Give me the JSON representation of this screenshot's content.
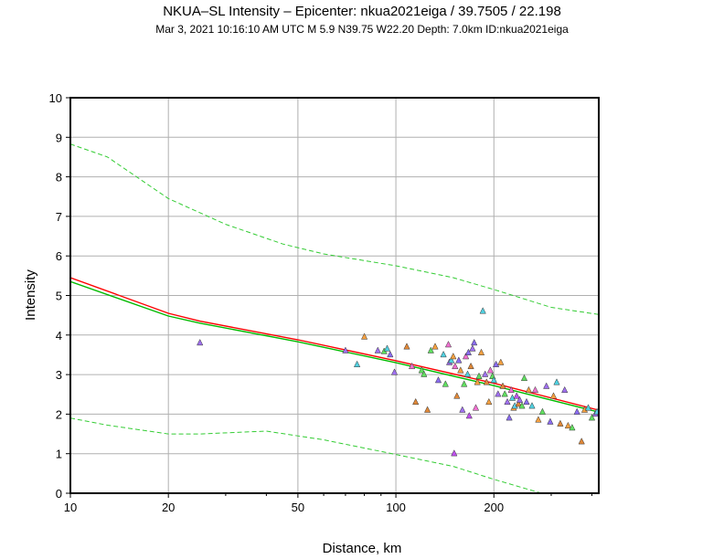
{
  "header": {
    "title": "NKUA–SL Intensity –  Epicenter: nkua2021eiga / 39.7505 / 22.198",
    "subtitle": "Mar  3, 2021 10:16:10 AM UTC   M 5.9   N39.75 W22.20   Depth: 7.0km   ID:nkua2021eiga"
  },
  "chart_data": {
    "type": "scatter",
    "title": "NKUA–SL Intensity –  Epicenter: nkua2021eiga / 39.7505 / 22.198",
    "xlabel": "Distance, km",
    "ylabel": "Intensity",
    "xscale": "log",
    "xlim": [
      10,
      420
    ],
    "ylim": [
      0,
      10
    ],
    "xticks": [
      10,
      20,
      50,
      100,
      200
    ],
    "xtick_labels": [
      "10",
      "20",
      "50",
      "100",
      "200"
    ],
    "yticks": [
      0,
      1,
      2,
      3,
      4,
      5,
      6,
      7,
      8,
      9,
      10
    ],
    "ytick_labels": [
      "0",
      "1",
      "2",
      "3",
      "4",
      "5",
      "6",
      "7",
      "8",
      "9",
      "10"
    ],
    "grid": true,
    "colors": {
      "red_curve": "#ff0000",
      "green_curve": "#00bb00",
      "dashed": "#33cc33",
      "grid": "#b0b0b0",
      "points": [
        "#f4a040",
        "#a070f0",
        "#60e060",
        "#50d0e0",
        "#f070d0",
        "#e08838",
        "#8a6cf0",
        "#5fd0e8",
        "#c050f0"
      ]
    },
    "series": [
      {
        "name": "red_curve",
        "style": "solid",
        "x": [
          10,
          20,
          25,
          50,
          100,
          200,
          420
        ],
        "y": [
          5.45,
          4.55,
          4.35,
          3.88,
          3.35,
          2.78,
          2.1
        ]
      },
      {
        "name": "green_curve",
        "style": "solid",
        "x": [
          10,
          20,
          25,
          50,
          100,
          200,
          420
        ],
        "y": [
          5.35,
          4.48,
          4.3,
          3.83,
          3.3,
          2.72,
          2.05
        ]
      },
      {
        "name": "upper_dashed",
        "style": "dashed",
        "x": [
          10,
          13,
          20,
          30,
          45,
          60,
          100,
          150,
          200,
          300,
          420
        ],
        "y": [
          8.83,
          8.5,
          7.45,
          6.8,
          6.3,
          6.05,
          5.75,
          5.45,
          5.15,
          4.7,
          4.52
        ]
      },
      {
        "name": "lower_dashed",
        "style": "dashed",
        "x": [
          10,
          13,
          20,
          25,
          40,
          60,
          100,
          150,
          200,
          280,
          300
        ],
        "y": [
          1.9,
          1.72,
          1.5,
          1.5,
          1.57,
          1.35,
          0.98,
          0.68,
          0.35,
          0.0,
          -0.05
        ]
      },
      {
        "name": "stations",
        "points": [
          {
            "x": 25,
            "y": 3.8,
            "c": 1
          },
          {
            "x": 70,
            "y": 3.6,
            "c": 1
          },
          {
            "x": 76,
            "y": 3.25,
            "c": 3
          },
          {
            "x": 80,
            "y": 3.95,
            "c": 0
          },
          {
            "x": 88,
            "y": 3.6,
            "c": 1
          },
          {
            "x": 92,
            "y": 3.58,
            "c": 2
          },
          {
            "x": 94,
            "y": 3.65,
            "c": 3
          },
          {
            "x": 96,
            "y": 3.5,
            "c": 6
          },
          {
            "x": 99,
            "y": 3.05,
            "c": 1
          },
          {
            "x": 108,
            "y": 3.7,
            "c": 5
          },
          {
            "x": 112,
            "y": 3.2,
            "c": 4
          },
          {
            "x": 115,
            "y": 2.3,
            "c": 5
          },
          {
            "x": 120,
            "y": 3.1,
            "c": 2
          },
          {
            "x": 122,
            "y": 3.0,
            "c": 2
          },
          {
            "x": 125,
            "y": 2.1,
            "c": 5
          },
          {
            "x": 128,
            "y": 3.6,
            "c": 2
          },
          {
            "x": 132,
            "y": 3.7,
            "c": 0
          },
          {
            "x": 135,
            "y": 2.85,
            "c": 6
          },
          {
            "x": 140,
            "y": 3.5,
            "c": 3
          },
          {
            "x": 142,
            "y": 2.75,
            "c": 2
          },
          {
            "x": 145,
            "y": 3.75,
            "c": 4
          },
          {
            "x": 146,
            "y": 3.3,
            "c": 1
          },
          {
            "x": 148,
            "y": 3.35,
            "c": 3
          },
          {
            "x": 150,
            "y": 3.45,
            "c": 0
          },
          {
            "x": 151,
            "y": 1.0,
            "c": 8
          },
          {
            "x": 152,
            "y": 3.2,
            "c": 4
          },
          {
            "x": 154,
            "y": 2.45,
            "c": 5
          },
          {
            "x": 156,
            "y": 3.35,
            "c": 6
          },
          {
            "x": 158,
            "y": 3.1,
            "c": 0
          },
          {
            "x": 160,
            "y": 2.1,
            "c": 1
          },
          {
            "x": 162,
            "y": 2.75,
            "c": 2
          },
          {
            "x": 164,
            "y": 3.45,
            "c": 4
          },
          {
            "x": 166,
            "y": 3.0,
            "c": 3
          },
          {
            "x": 167,
            "y": 3.55,
            "c": 6
          },
          {
            "x": 168,
            "y": 1.95,
            "c": 8
          },
          {
            "x": 170,
            "y": 3.2,
            "c": 5
          },
          {
            "x": 172,
            "y": 3.65,
            "c": 1
          },
          {
            "x": 174,
            "y": 3.8,
            "c": 6
          },
          {
            "x": 176,
            "y": 2.15,
            "c": 4
          },
          {
            "x": 178,
            "y": 2.8,
            "c": 0
          },
          {
            "x": 180,
            "y": 2.95,
            "c": 2
          },
          {
            "x": 183,
            "y": 3.55,
            "c": 0
          },
          {
            "x": 185,
            "y": 4.6,
            "c": 3
          },
          {
            "x": 188,
            "y": 3.0,
            "c": 1
          },
          {
            "x": 190,
            "y": 2.8,
            "c": 5
          },
          {
            "x": 193,
            "y": 2.3,
            "c": 0
          },
          {
            "x": 195,
            "y": 3.1,
            "c": 4
          },
          {
            "x": 198,
            "y": 2.95,
            "c": 2
          },
          {
            "x": 200,
            "y": 2.85,
            "c": 3
          },
          {
            "x": 203,
            "y": 3.25,
            "c": 6
          },
          {
            "x": 206,
            "y": 2.5,
            "c": 1
          },
          {
            "x": 210,
            "y": 3.3,
            "c": 0
          },
          {
            "x": 213,
            "y": 2.7,
            "c": 5
          },
          {
            "x": 216,
            "y": 2.5,
            "c": 2
          },
          {
            "x": 220,
            "y": 2.3,
            "c": 1
          },
          {
            "x": 223,
            "y": 1.9,
            "c": 6
          },
          {
            "x": 226,
            "y": 2.6,
            "c": 4
          },
          {
            "x": 228,
            "y": 2.4,
            "c": 3
          },
          {
            "x": 230,
            "y": 2.15,
            "c": 0
          },
          {
            "x": 232,
            "y": 2.2,
            "c": 7
          },
          {
            "x": 235,
            "y": 2.45,
            "c": 8
          },
          {
            "x": 238,
            "y": 2.25,
            "c": 5
          },
          {
            "x": 240,
            "y": 2.35,
            "c": 1
          },
          {
            "x": 244,
            "y": 2.2,
            "c": 2
          },
          {
            "x": 248,
            "y": 2.9,
            "c": 2
          },
          {
            "x": 252,
            "y": 2.3,
            "c": 6
          },
          {
            "x": 256,
            "y": 2.6,
            "c": 0
          },
          {
            "x": 262,
            "y": 2.2,
            "c": 3
          },
          {
            "x": 268,
            "y": 2.6,
            "c": 4
          },
          {
            "x": 274,
            "y": 1.85,
            "c": 0
          },
          {
            "x": 282,
            "y": 2.05,
            "c": 2
          },
          {
            "x": 290,
            "y": 2.7,
            "c": 1
          },
          {
            "x": 298,
            "y": 1.8,
            "c": 6
          },
          {
            "x": 305,
            "y": 2.45,
            "c": 0
          },
          {
            "x": 312,
            "y": 2.8,
            "c": 3
          },
          {
            "x": 320,
            "y": 1.75,
            "c": 5
          },
          {
            "x": 330,
            "y": 2.6,
            "c": 1
          },
          {
            "x": 338,
            "y": 1.7,
            "c": 0
          },
          {
            "x": 348,
            "y": 1.65,
            "c": 2
          },
          {
            "x": 360,
            "y": 2.05,
            "c": 6
          },
          {
            "x": 372,
            "y": 1.3,
            "c": 5
          },
          {
            "x": 380,
            "y": 2.1,
            "c": 0
          },
          {
            "x": 390,
            "y": 2.15,
            "c": 3
          },
          {
            "x": 400,
            "y": 1.9,
            "c": 2
          },
          {
            "x": 410,
            "y": 2.0,
            "c": 1
          },
          {
            "x": 415,
            "y": 2.05,
            "c": 7
          }
        ]
      }
    ]
  }
}
